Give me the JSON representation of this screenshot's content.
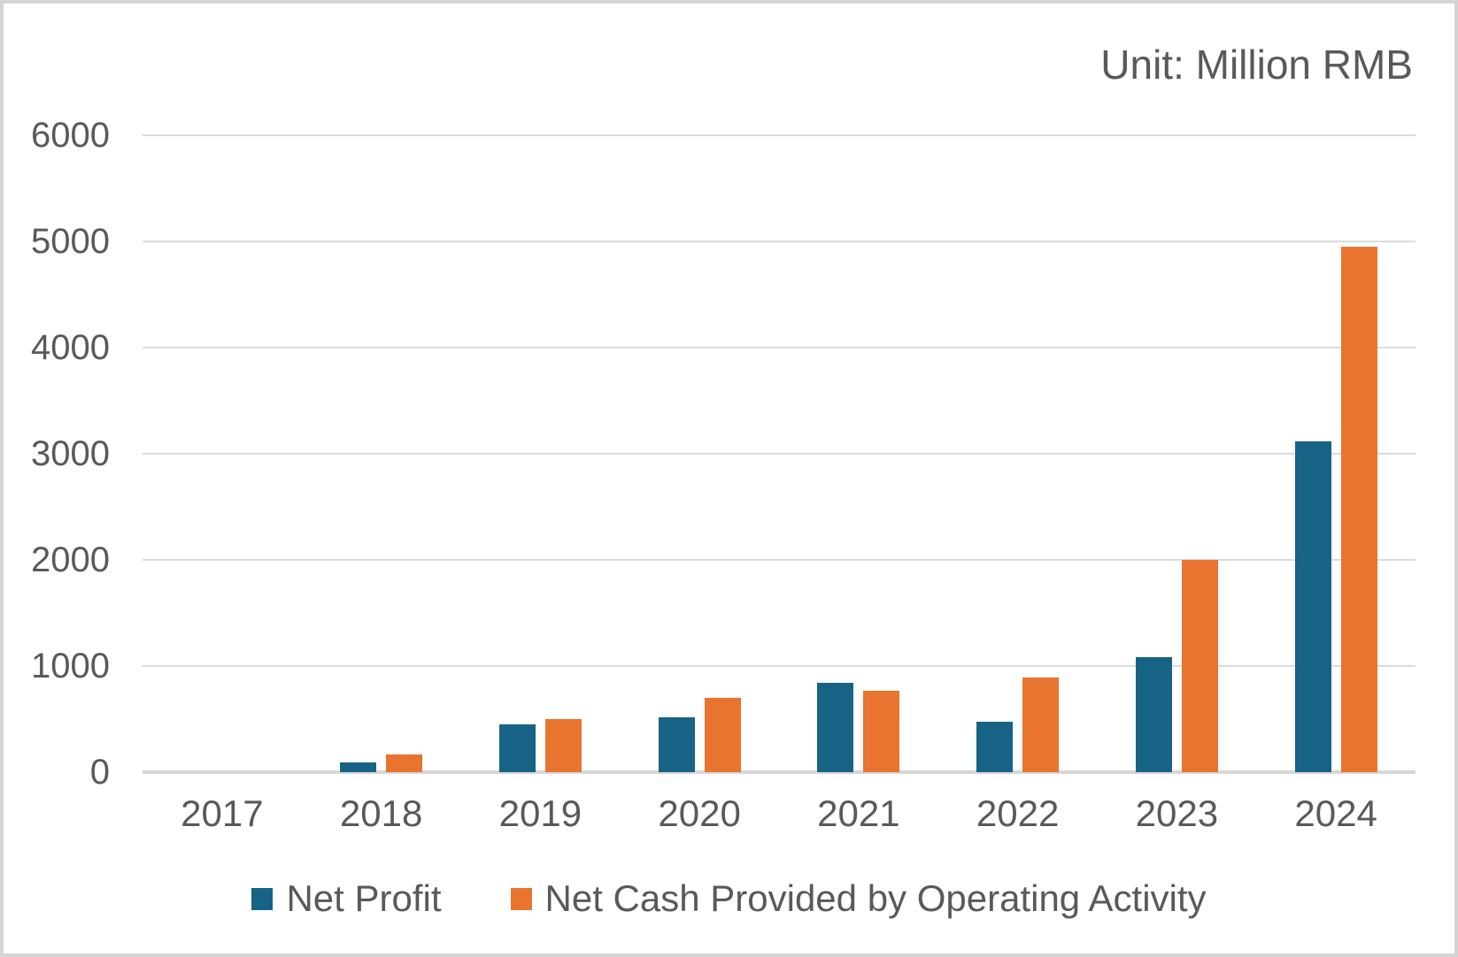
{
  "unit_label": "Unit: Million RMB",
  "colors": {
    "net_profit": "#176385",
    "net_cash": "#E8742F",
    "gridline": "#DBDBDB",
    "axis_baseline": "#D6D6D6",
    "text": "#595959",
    "frame_border": "#D4D4D4",
    "background": "#FFFFFF"
  },
  "chart_data": {
    "type": "bar",
    "title": "Unit: Million RMB",
    "categories": [
      "2017",
      "2018",
      "2019",
      "2020",
      "2021",
      "2022",
      "2023",
      "2024"
    ],
    "series": [
      {
        "name": "Net Profit",
        "color": "#176385",
        "values": [
          0,
          90,
          450,
          520,
          845,
          475,
          1080,
          3120
        ]
      },
      {
        "name": "Net Cash Provided by Operating Activity",
        "color": "#E8742F",
        "values": [
          0,
          165,
          500,
          700,
          770,
          890,
          2000,
          4950
        ]
      }
    ],
    "xlabel": "",
    "ylabel": "",
    "ylim": [
      0,
      6000
    ],
    "yticks": [
      0,
      1000,
      2000,
      3000,
      4000,
      5000,
      6000
    ],
    "grid": true,
    "legend_position": "bottom"
  }
}
